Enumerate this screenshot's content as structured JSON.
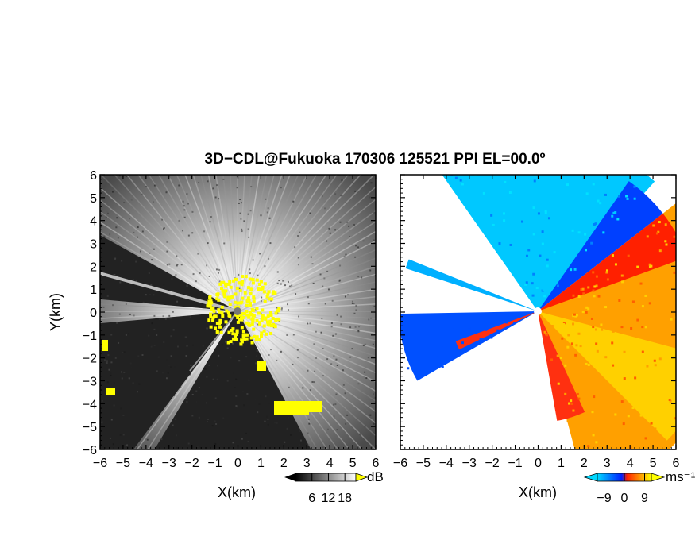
{
  "figure": {
    "title": "3D−CDL@Fukuoka 170306 125521 PPI EL=00.0º"
  },
  "chart_data": [
    {
      "type": "heatmap",
      "panel": "left",
      "quantity": "SNR",
      "xlabel": "X(km)",
      "ylabel": "Y(km)",
      "xlim": [
        -6,
        6
      ],
      "ylim": [
        -6,
        6
      ],
      "x_ticks": [
        "−6",
        "−5",
        "−4",
        "−3",
        "−2",
        "−1",
        "0",
        "1",
        "2",
        "3",
        "4",
        "5",
        "6"
      ],
      "y_ticks": [
        "6",
        "5",
        "4",
        "3",
        "2",
        "1",
        "0",
        "−1",
        "−2",
        "−3",
        "−4",
        "−5",
        "−6"
      ],
      "colorbar": {
        "unit": "dB",
        "tick_labels": [
          "6",
          "12",
          "18"
        ],
        "tick_values": [
          6,
          12,
          18
        ],
        "range": [
          0,
          22
        ],
        "colors": [
          "#000000",
          "#ffffff"
        ],
        "over_color": "#ffff00"
      },
      "blocked_sectors_deg": [
        [
          151,
          175
        ],
        [
          185,
          233
        ],
        [
          239,
          298
        ]
      ],
      "over_range_color": "#ffff00",
      "radar_site": [
        0,
        0
      ]
    },
    {
      "type": "heatmap",
      "panel": "right",
      "quantity": "Radial velocity",
      "xlabel": "X(km)",
      "ylabel": "",
      "xlim": [
        -6,
        6
      ],
      "ylim": [
        -6,
        6
      ],
      "x_ticks": [
        "−6",
        "−5",
        "−4",
        "−3",
        "−2",
        "−1",
        "0",
        "1",
        "2",
        "3",
        "4",
        "5",
        "6"
      ],
      "y_ticks": [
        "6",
        "5",
        "4",
        "3",
        "2",
        "1",
        "0",
        "−1",
        "−2",
        "−3",
        "−4",
        "−5",
        "−6"
      ],
      "colorbar": {
        "unit": "ms⁻¹",
        "tick_labels": [
          "−9",
          "0",
          "9"
        ],
        "tick_values": [
          -9,
          0,
          9
        ],
        "range": [
          -12,
          12
        ],
        "colors": [
          "#00d8ff",
          "#0020ff",
          "#ff2000",
          "#ffff00"
        ]
      },
      "approaching_color": "#00c8ff",
      "receding_color": "#ffa000"
    }
  ]
}
